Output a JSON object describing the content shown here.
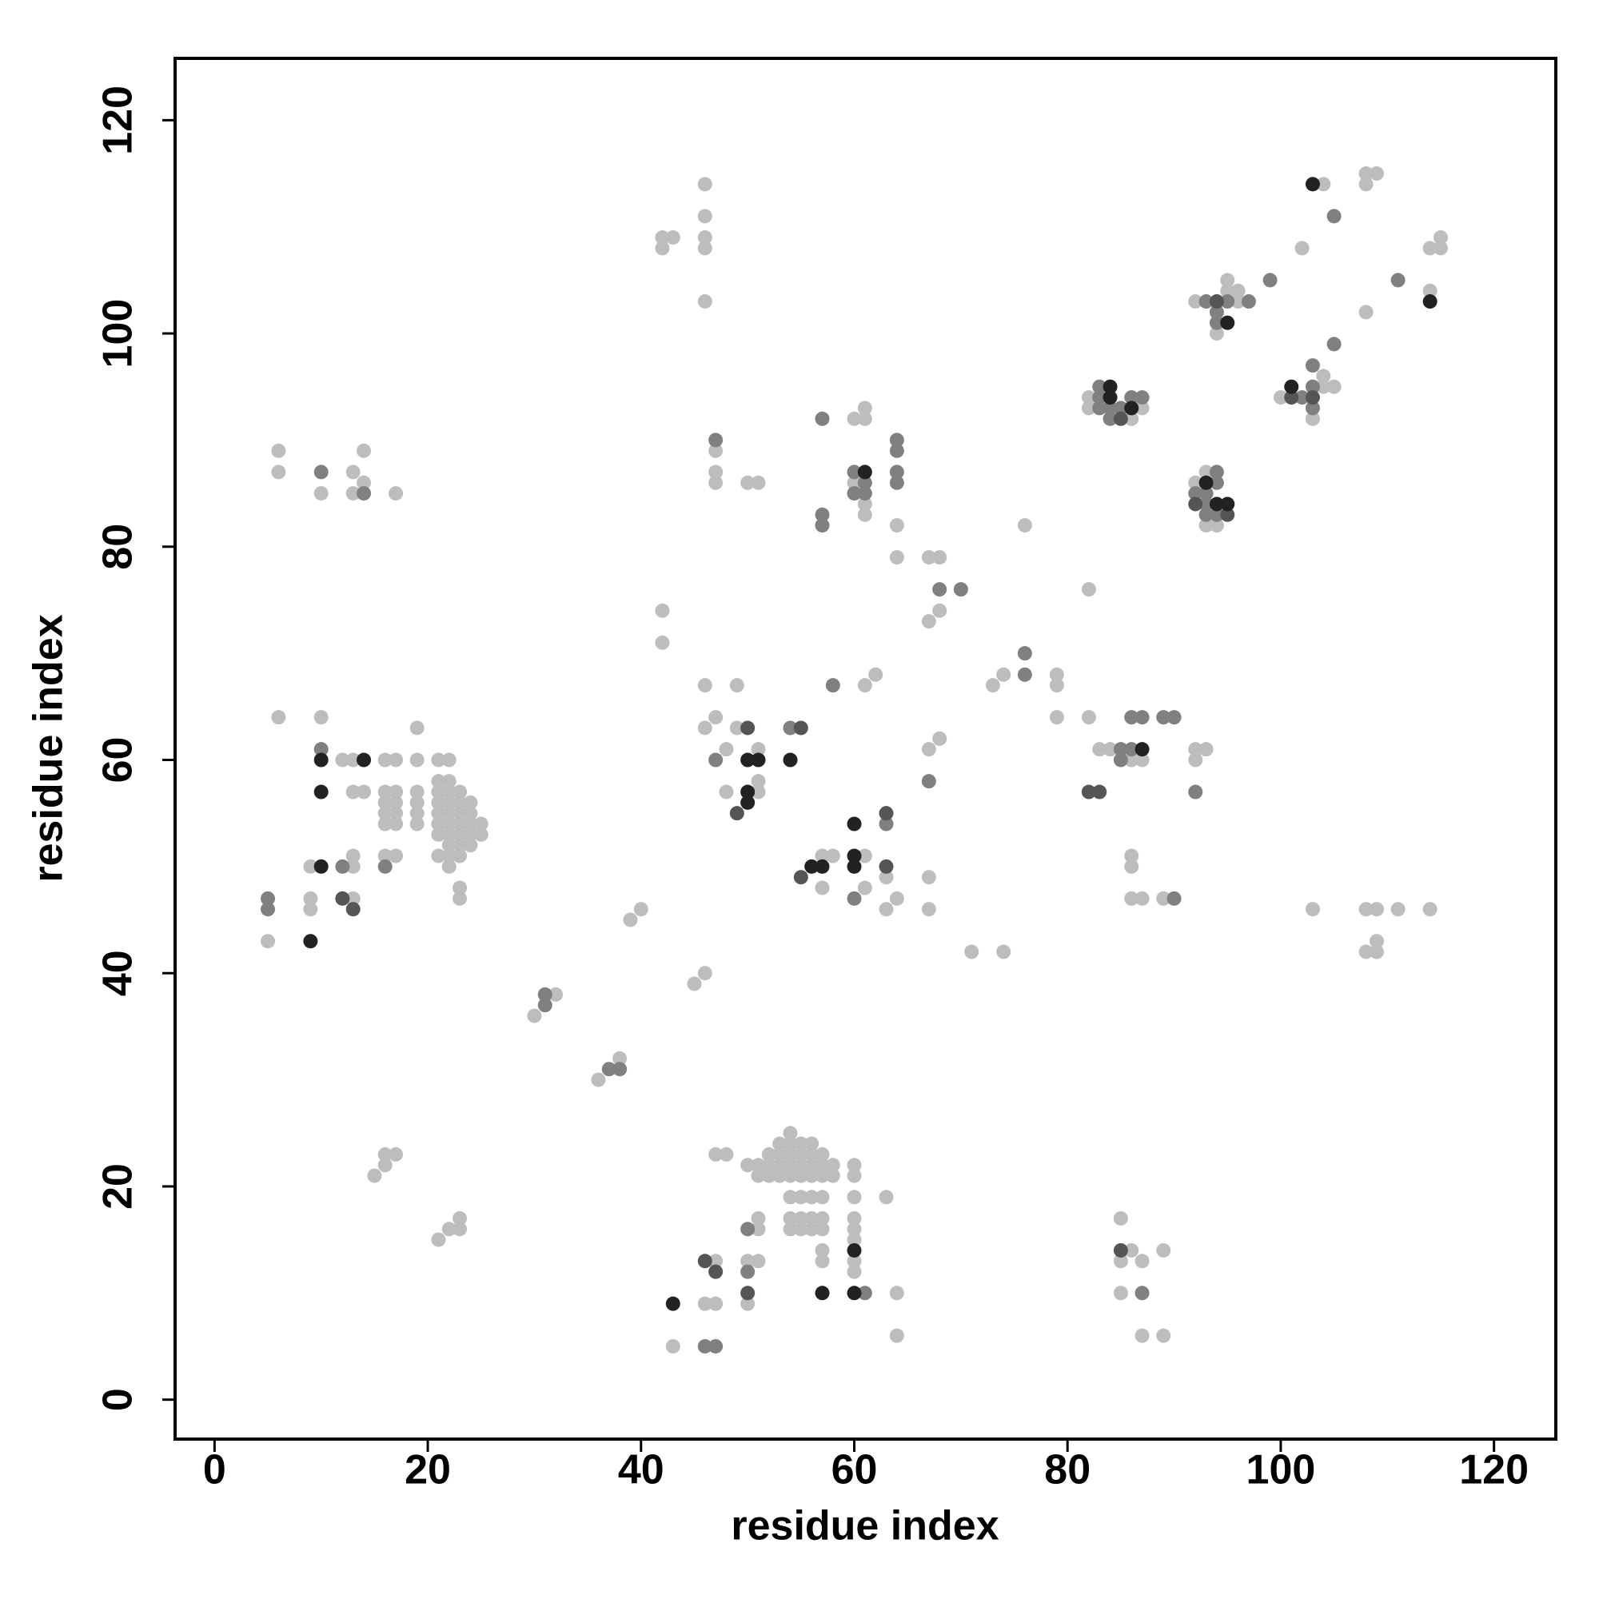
{
  "chart_data": {
    "type": "scatter",
    "xlabel": "residue index",
    "ylabel": "residue index",
    "xlim": [
      -3.7,
      125.8
    ],
    "ylim": [
      -3.7,
      125.8
    ],
    "xticks": [
      0,
      20,
      40,
      60,
      80,
      100,
      120
    ],
    "yticks": [
      0,
      20,
      40,
      60,
      80,
      100,
      120
    ],
    "grid": false,
    "series": [
      {
        "color": "#bdbdbd",
        "x": [
          5,
          9,
          9,
          9,
          10,
          13,
          13,
          13,
          17,
          16,
          12,
          13,
          13,
          14,
          16,
          16,
          16,
          16,
          17,
          17,
          17,
          17,
          16,
          17,
          19,
          19,
          19,
          19,
          19,
          19,
          21,
          21,
          21,
          21,
          21,
          21,
          21,
          21,
          22,
          22,
          22,
          22,
          22,
          22,
          22,
          22,
          22,
          22,
          23,
          23,
          23,
          23,
          23,
          23,
          23,
          24,
          24,
          24,
          24,
          24,
          25,
          25,
          23,
          23,
          6,
          6,
          6,
          10,
          13,
          13,
          14,
          14,
          17,
          15,
          16,
          16,
          17,
          21,
          22,
          23,
          23,
          30,
          32,
          36,
          38,
          39,
          40,
          42,
          42,
          45,
          46,
          42,
          42,
          43,
          46,
          46,
          46,
          46,
          46,
          46,
          46,
          47,
          48,
          48,
          49,
          49,
          51,
          51,
          51,
          47,
          47,
          47,
          50,
          51,
          57,
          57,
          58,
          61,
          61,
          63,
          63,
          64,
          61,
          62,
          60,
          61,
          61,
          60,
          61,
          61,
          64,
          64,
          67,
          68,
          67,
          68,
          67,
          68,
          67,
          67,
          71,
          74,
          73,
          74,
          76,
          79,
          79,
          79,
          82,
          82,
          83,
          84,
          86,
          87,
          86,
          86,
          86,
          87,
          89,
          92,
          93,
          92,
          82,
          82,
          86,
          87,
          92,
          93,
          93,
          94,
          92,
          94,
          95,
          95,
          96,
          96,
          100,
          103,
          104,
          104,
          105,
          102,
          104,
          108,
          109,
          108,
          108,
          114,
          115,
          115,
          114,
          103,
          108,
          109,
          111,
          114,
          108,
          109,
          109,
          47,
          48,
          50,
          51,
          51,
          52,
          52,
          52,
          53,
          53,
          53,
          53,
          54,
          54,
          54,
          54,
          54,
          55,
          55,
          55,
          55,
          56,
          56,
          56,
          56,
          57,
          57,
          57,
          58,
          58,
          60,
          60,
          54,
          55,
          56,
          57,
          54,
          55,
          56,
          57,
          54,
          55,
          56,
          57,
          60,
          60,
          60,
          60,
          63,
          51,
          51,
          51,
          50,
          50,
          47,
          46,
          47,
          43,
          57,
          57,
          60,
          60,
          64,
          64,
          85,
          86,
          87,
          85,
          87,
          89,
          89,
          85
        ],
        "y": [
          43,
          50,
          47,
          46,
          64,
          47,
          51,
          50,
          51,
          51,
          60,
          60,
          57,
          57,
          54,
          55,
          56,
          57,
          54,
          55,
          56,
          57,
          60,
          60,
          54,
          55,
          56,
          57,
          60,
          63,
          51,
          53,
          54,
          55,
          56,
          57,
          58,
          60,
          50,
          51,
          52,
          53,
          54,
          55,
          56,
          57,
          58,
          60,
          51,
          52,
          53,
          54,
          55,
          56,
          57,
          52,
          53,
          54,
          55,
          56,
          53,
          54,
          47,
          48,
          64,
          89,
          87,
          85,
          87,
          85,
          86,
          89,
          85,
          21,
          22,
          23,
          23,
          15,
          16,
          16,
          17,
          36,
          38,
          30,
          32,
          45,
          46,
          71,
          74,
          39,
          40,
          109,
          108,
          109,
          114,
          111,
          109,
          108,
          103,
          67,
          63,
          64,
          61,
          57,
          67,
          63,
          61,
          58,
          57,
          89,
          87,
          86,
          86,
          86,
          48,
          51,
          51,
          51,
          48,
          49,
          46,
          47,
          67,
          68,
          92,
          93,
          92,
          86,
          84,
          83,
          82,
          79,
          79,
          79,
          73,
          74,
          61,
          62,
          49,
          46,
          42,
          42,
          67,
          68,
          82,
          68,
          67,
          64,
          76,
          64,
          61,
          61,
          60,
          60,
          51,
          50,
          47,
          47,
          47,
          61,
          61,
          60,
          94,
          93,
          92,
          93,
          86,
          87,
          82,
          82,
          103,
          100,
          105,
          104,
          104,
          103,
          94,
          92,
          96,
          95,
          95,
          108,
          114,
          115,
          115,
          114,
          102,
          108,
          109,
          108,
          104,
          46,
          46,
          46,
          46,
          46,
          42,
          43,
          42,
          23,
          23,
          22,
          22,
          21,
          23,
          22,
          21,
          24,
          23,
          22,
          21,
          25,
          24,
          23,
          22,
          21,
          24,
          23,
          22,
          21,
          24,
          23,
          22,
          21,
          23,
          22,
          21,
          22,
          21,
          22,
          21,
          19,
          19,
          19,
          19,
          17,
          17,
          17,
          17,
          16,
          16,
          16,
          16,
          19,
          17,
          16,
          15,
          19,
          17,
          16,
          13,
          13,
          9,
          13,
          9,
          9,
          5,
          14,
          13,
          13,
          12,
          10,
          6,
          13,
          14,
          13,
          10,
          6,
          14,
          6,
          17
        ]
      },
      {
        "color": "#808080",
        "x": [
          5,
          5,
          10,
          12,
          16,
          10,
          14,
          31,
          31,
          37,
          38,
          47,
          54,
          47,
          60,
          63,
          58,
          57,
          57,
          57,
          60,
          60,
          61,
          61,
          64,
          64,
          64,
          64,
          68,
          70,
          67,
          76,
          76,
          85,
          85,
          86,
          86,
          87,
          89,
          90,
          90,
          92,
          83,
          83,
          83,
          84,
          84,
          85,
          86,
          87,
          92,
          93,
          93,
          93,
          94,
          94,
          94,
          93,
          94,
          94,
          95,
          97,
          99,
          102,
          103,
          103,
          103,
          105,
          105,
          111,
          50,
          50,
          46,
          47,
          61,
          87
        ],
        "y": [
          47,
          46,
          61,
          50,
          50,
          87,
          85,
          37,
          38,
          31,
          31,
          60,
          63,
          90,
          47,
          54,
          67,
          92,
          83,
          82,
          87,
          85,
          86,
          85,
          90,
          89,
          87,
          86,
          76,
          76,
          58,
          70,
          68,
          61,
          60,
          61,
          64,
          64,
          64,
          64,
          47,
          57,
          95,
          94,
          93,
          93,
          92,
          93,
          94,
          94,
          85,
          85,
          84,
          83,
          87,
          86,
          83,
          103,
          102,
          101,
          103,
          103,
          105,
          94,
          97,
          95,
          93,
          99,
          111,
          105,
          16,
          12,
          5,
          5,
          10,
          10
        ]
      },
      {
        "color": "#555555",
        "x": [
          12,
          13,
          49,
          50,
          55,
          55,
          63,
          63,
          82,
          83,
          85,
          92,
          95,
          94,
          101,
          103,
          50,
          46,
          47,
          85
        ],
        "y": [
          47,
          46,
          55,
          63,
          63,
          49,
          55,
          50,
          57,
          57,
          92,
          84,
          83,
          103,
          94,
          94,
          10,
          13,
          12,
          14
        ]
      },
      {
        "color": "#222222",
        "x": [
          9,
          10,
          10,
          10,
          14,
          50,
          50,
          50,
          51,
          54,
          56,
          57,
          60,
          60,
          60,
          61,
          84,
          84,
          86,
          87,
          93,
          94,
          95,
          95,
          101,
          103,
          114,
          43,
          57,
          60,
          60
        ],
        "y": [
          43,
          50,
          57,
          60,
          60,
          60,
          57,
          56,
          60,
          60,
          50,
          50,
          54,
          51,
          50,
          87,
          95,
          94,
          93,
          61,
          86,
          84,
          84,
          101,
          95,
          114,
          103,
          9,
          10,
          14,
          10
        ]
      }
    ]
  }
}
